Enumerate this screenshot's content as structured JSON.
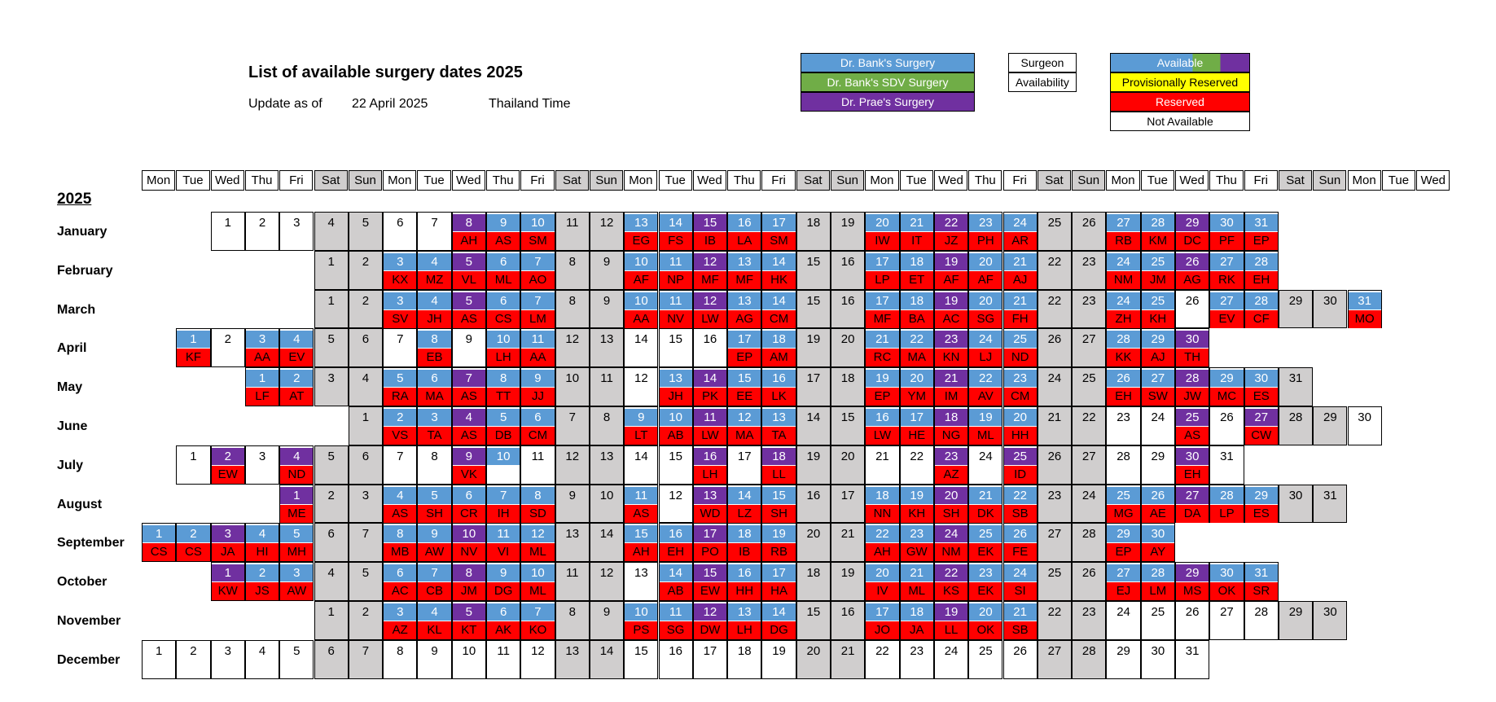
{
  "header": {
    "title": "List of available surgery dates 2025",
    "update_label": "Update as of",
    "update_date": "22 April 2025",
    "timezone": "Thailand Time",
    "year": "2025"
  },
  "legend": {
    "surgeons": [
      {
        "label": "Dr. Bank's Surgery",
        "color": "#5b9bd5"
      },
      {
        "label": "Dr. Bank's SDV Surgery",
        "color": "#70ad47"
      },
      {
        "label": "Dr. Prae's Surgery",
        "color": "#7030a0"
      }
    ],
    "key": [
      "Surgeon",
      "Availability"
    ],
    "statuses": [
      {
        "label": "Available",
        "colors": [
          "#5b9bd5",
          "#70ad47",
          "#7030a0"
        ]
      },
      {
        "label": "Provisionally Reserved",
        "color": "#ffff00"
      },
      {
        "label": "Reserved",
        "color": "#ff0000"
      },
      {
        "label": "Not Available",
        "color": "#ffffff"
      }
    ]
  },
  "day_headers": [
    "Mon",
    "Tue",
    "Wed",
    "Thu",
    "Fri",
    "Sat",
    "Sun",
    "Mon",
    "Tue",
    "Wed",
    "Thu",
    "Fri",
    "Sat",
    "Sun",
    "Mon",
    "Tue",
    "Wed",
    "Thu",
    "Fri",
    "Sat",
    "Sun",
    "Mon",
    "Tue",
    "Wed",
    "Thu",
    "Fri",
    "Sat",
    "Sun",
    "Mon",
    "Tue",
    "Wed",
    "Thu",
    "Fri",
    "Sat",
    "Sun",
    "Mon",
    "Tue",
    "Wed"
  ],
  "colors": {
    "blue": "#5b9bd5",
    "purple": "#7030a0",
    "green": "#70ad47",
    "reserved": "#ff0000",
    "weekend": "#d0cece"
  },
  "months": [
    {
      "name": "January",
      "offset": 2,
      "types": "pbbb00bbbbb00bbbbb00bbbbb",
      "initials": {
        "8": "AH",
        "9": "AS",
        "10": "SM",
        "13": "EG",
        "14": "FS",
        "15": "IB",
        "16": "LA",
        "17": "SM",
        "20": "IW",
        "21": "IT",
        "22": "JZ",
        "23": "PH",
        "24": "AR",
        "27": "RB",
        "28": "KM",
        "29": "DC",
        "30": "PF",
        "31": "EP"
      },
      "purple": [
        8,
        15,
        22,
        29
      ]
    },
    {
      "name": "February",
      "offset": 5,
      "purple": [
        5,
        12,
        19,
        26
      ],
      "blue": [
        3,
        4,
        6,
        7,
        10,
        11,
        13,
        14,
        17,
        18,
        20,
        21,
        24,
        25,
        27,
        28
      ],
      "initials": {
        "3": "KX",
        "4": "MZ",
        "5": "VL",
        "6": "ML",
        "7": "AO",
        "10": "AF",
        "11": "NP",
        "12": "MF",
        "13": "MF",
        "14": "HK",
        "17": "LP",
        "18": "ET",
        "19": "AF",
        "20": "AF",
        "21": "AJ",
        "24": "NM",
        "25": "JM",
        "26": "AG",
        "27": "RK",
        "28": "EH"
      }
    },
    {
      "name": "March",
      "offset": 5,
      "purple": [
        5,
        12,
        19
      ],
      "blue": [
        3,
        4,
        6,
        7,
        10,
        11,
        13,
        14,
        17,
        18,
        20,
        21,
        24,
        25,
        27,
        28,
        31
      ],
      "initials": {
        "3": "SV",
        "4": "JH",
        "5": "AS",
        "6": "CS",
        "7": "LM",
        "10": "AA",
        "11": "NV",
        "12": "LW",
        "13": "AG",
        "14": "CM",
        "17": "MF",
        "18": "BA",
        "19": "AC",
        "20": "SG",
        "21": "FH",
        "24": "ZH",
        "25": "KH",
        "27": "EV",
        "28": "CF",
        "31": "MO"
      }
    },
    {
      "name": "April",
      "offset": 1,
      "purple": [
        23,
        30
      ],
      "blue": [
        1,
        3,
        4,
        8,
        10,
        11,
        17,
        18,
        21,
        22,
        24,
        25,
        28,
        29
      ],
      "initials": {
        "1": "KF",
        "3": "AA",
        "4": "EV",
        "8": "EB",
        "10": "LH",
        "11": "AA",
        "17": "EP",
        "18": "AM",
        "21": "RC",
        "22": "MA",
        "23": "KN",
        "24": "LJ",
        "25": "ND",
        "28": "KK",
        "29": "AJ",
        "30": "TH"
      }
    },
    {
      "name": "May",
      "offset": 3,
      "purple": [
        7,
        14,
        21,
        28
      ],
      "blue": [
        1,
        2,
        5,
        6,
        8,
        9,
        13,
        15,
        16,
        19,
        20,
        22,
        23,
        26,
        27,
        29,
        30
      ],
      "initials": {
        "1": "LF",
        "2": "AT",
        "5": "RA",
        "6": "MA",
        "7": "AS",
        "8": "TT",
        "9": "JJ",
        "13": "JH",
        "14": "PK",
        "15": "EE",
        "16": "LK",
        "19": "EP",
        "20": "YM",
        "21": "IM",
        "22": "AV",
        "23": "CM",
        "26": "EH",
        "27": "SW",
        "28": "JW",
        "29": "MC",
        "30": "ES"
      }
    },
    {
      "name": "June",
      "offset": 6,
      "purple": [
        4,
        11,
        18,
        25,
        27
      ],
      "blue": [
        2,
        3,
        5,
        6,
        9,
        10,
        12,
        13,
        16,
        17,
        19,
        20
      ],
      "initials": {
        "2": "VS",
        "3": "TA",
        "4": "AS",
        "5": "DB",
        "6": "CM",
        "9": "LT",
        "10": "AB",
        "11": "LW",
        "12": "MA",
        "13": "TA",
        "16": "LW",
        "17": "HE",
        "18": "NG",
        "19": "ML",
        "20": "HH",
        "25": "AS",
        "27": "CW"
      }
    },
    {
      "name": "July",
      "offset": 1,
      "purple": [
        2,
        4,
        9,
        16,
        18,
        23,
        25,
        30
      ],
      "blue": [
        10
      ],
      "initials": {
        "2": "EW",
        "4": "ND",
        "9": "VK",
        "16": "LH",
        "18": "LL",
        "23": "AZ",
        "25": "ID",
        "30": "EH"
      }
    },
    {
      "name": "August",
      "offset": 4,
      "purple": [
        1,
        13,
        20,
        27
      ],
      "blue": [
        4,
        5,
        6,
        7,
        8,
        11,
        14,
        15,
        18,
        19,
        21,
        22,
        25,
        26,
        28,
        29
      ],
      "initials": {
        "1": "ME",
        "4": "AS",
        "5": "SH",
        "6": "CR",
        "7": "IH",
        "8": "SD",
        "11": "AS",
        "13": "WD",
        "14": "LZ",
        "15": "SH",
        "18": "NN",
        "19": "KH",
        "20": "SH",
        "21": "DK",
        "22": "SB",
        "25": "MG",
        "26": "AE",
        "27": "DA",
        "28": "LP",
        "29": "ES"
      }
    },
    {
      "name": "September",
      "offset": 0,
      "purple": [
        3,
        10,
        17,
        24
      ],
      "blue": [
        1,
        2,
        4,
        5,
        8,
        9,
        11,
        12,
        15,
        16,
        18,
        19,
        22,
        23,
        25,
        26,
        29,
        30
      ],
      "initials": {
        "1": "CS",
        "2": "CS",
        "3": "JA",
        "4": "HI",
        "5": "MH",
        "8": "MB",
        "9": "AW",
        "10": "NV",
        "11": "VI",
        "12": "ML",
        "15": "AH",
        "16": "EH",
        "17": "PO",
        "18": "IB",
        "19": "RB",
        "22": "AH",
        "23": "GW",
        "24": "NM",
        "25": "EK",
        "26": "FE",
        "29": "EP",
        "30": "AY"
      }
    },
    {
      "name": "October",
      "offset": 2,
      "purple": [
        1,
        8,
        15,
        22,
        29
      ],
      "blue": [
        2,
        3,
        6,
        7,
        9,
        10,
        14,
        16,
        17,
        20,
        21,
        23,
        24,
        27,
        28,
        30,
        31
      ],
      "initials": {
        "1": "KW",
        "2": "JS",
        "3": "AW",
        "6": "AC",
        "7": "CB",
        "8": "JM",
        "9": "DG",
        "10": "ML",
        "14": "AB",
        "15": "EW",
        "16": "HH",
        "17": "HA",
        "20": "IV",
        "21": "ML",
        "22": "KS",
        "23": "EK",
        "24": "SI",
        "27": "EJ",
        "28": "LM",
        "29": "MS",
        "30": "OK",
        "31": "SR"
      }
    },
    {
      "name": "November",
      "offset": 5,
      "purple": [
        5,
        12,
        19
      ],
      "blue": [
        3,
        4,
        6,
        7,
        10,
        11,
        13,
        14,
        17,
        18,
        20,
        21
      ],
      "initials": {
        "3": "AZ",
        "4": "KL",
        "5": "KT",
        "6": "AK",
        "7": "KO",
        "10": "PS",
        "11": "SG",
        "12": "DW",
        "13": "LH",
        "14": "DG",
        "17": "JO",
        "18": "JA",
        "19": "LL",
        "20": "OK",
        "21": "SB"
      }
    },
    {
      "name": "December",
      "offset": 0,
      "purple": [],
      "blue": [],
      "initials": {}
    }
  ]
}
